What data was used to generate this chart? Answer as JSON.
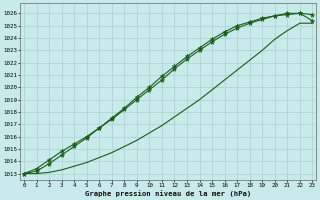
{
  "title": "Graphe pression niveau de la mer (hPa)",
  "bg_color": "#c8eaea",
  "grid_color": "#afd4d4",
  "line_color": "#1a5c1a",
  "marker_color": "#1a5c1a",
  "xlim": [
    -0.3,
    23.3
  ],
  "ylim": [
    1012.5,
    1026.8
  ],
  "xticks": [
    0,
    1,
    2,
    3,
    4,
    5,
    6,
    7,
    8,
    9,
    10,
    11,
    12,
    13,
    14,
    15,
    16,
    17,
    18,
    19,
    20,
    21,
    22,
    23
  ],
  "yticks": [
    1013,
    1014,
    1015,
    1016,
    1017,
    1018,
    1019,
    1020,
    1021,
    1022,
    1023,
    1024,
    1025,
    1026
  ],
  "series1_x": [
    0,
    1,
    2,
    3,
    4,
    5,
    6,
    7,
    8,
    9,
    10,
    11,
    12,
    13,
    14,
    15,
    16,
    17,
    18,
    19,
    20,
    21,
    22,
    23
  ],
  "series1_y": [
    1013.0,
    1013.4,
    1014.1,
    1014.8,
    1015.4,
    1016.0,
    1016.7,
    1017.4,
    1018.2,
    1019.0,
    1019.8,
    1020.6,
    1021.5,
    1022.3,
    1023.0,
    1023.7,
    1024.3,
    1024.8,
    1025.2,
    1025.5,
    1025.8,
    1025.9,
    1026.0,
    1025.9
  ],
  "series2_x": [
    0,
    1,
    2,
    3,
    4,
    5,
    6,
    7,
    8,
    9,
    10,
    11,
    12,
    13,
    14,
    15,
    16,
    17,
    18,
    19,
    20,
    21,
    22,
    23
  ],
  "series2_y": [
    1013.0,
    1013.2,
    1013.8,
    1014.5,
    1015.2,
    1015.9,
    1016.7,
    1017.5,
    1018.3,
    1019.2,
    1020.0,
    1020.9,
    1021.7,
    1022.5,
    1023.2,
    1023.9,
    1024.5,
    1025.0,
    1025.3,
    1025.6,
    1025.8,
    1026.0,
    1026.0,
    1025.4
  ],
  "series3_x": [
    0,
    1,
    2,
    3,
    4,
    5,
    6,
    7,
    8,
    9,
    10,
    11,
    12,
    13,
    14,
    15,
    16,
    17,
    18,
    19,
    20,
    21,
    22,
    23
  ],
  "series3_y": [
    1013.0,
    1013.0,
    1013.1,
    1013.3,
    1013.6,
    1013.9,
    1014.3,
    1014.7,
    1015.2,
    1015.7,
    1016.3,
    1016.9,
    1017.6,
    1018.3,
    1019.0,
    1019.8,
    1020.6,
    1021.4,
    1022.2,
    1023.0,
    1023.9,
    1024.6,
    1025.2,
    1025.2
  ]
}
